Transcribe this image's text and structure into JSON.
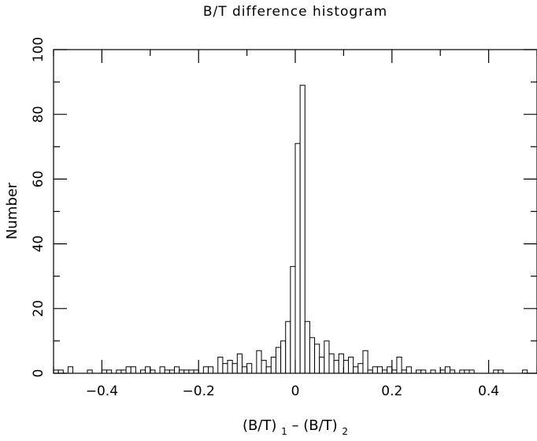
{
  "chart_data": {
    "type": "bar",
    "title": "B/T difference histogram",
    "ylabel": "Number",
    "xlabel": {
      "parts": [
        "(B/T)",
        "1",
        " – (B/T)",
        "2"
      ]
    },
    "xlim": [
      -0.5,
      0.5
    ],
    "ylim": [
      0,
      100
    ],
    "x_ticks": [
      -0.4,
      -0.2,
      0,
      0.2,
      0.4
    ],
    "x_tick_labels": [
      "−0.4",
      "−0.2",
      "0",
      "0.2",
      "0.4"
    ],
    "y_ticks": [
      0,
      20,
      40,
      60,
      80,
      100
    ],
    "y_tick_labels": [
      "0",
      "20",
      "40",
      "60",
      "80",
      "100"
    ],
    "bin_width": 0.01,
    "bin_start": -0.5,
    "values": [
      1,
      1,
      0,
      2,
      0,
      0,
      0,
      1,
      0,
      0,
      1,
      1,
      0,
      1,
      1,
      2,
      2,
      0,
      1,
      2,
      1,
      0,
      2,
      1,
      1,
      2,
      1,
      1,
      1,
      1,
      0,
      2,
      2,
      0,
      5,
      3,
      4,
      3,
      6,
      2,
      3,
      0,
      7,
      4,
      2,
      5,
      8,
      10,
      16,
      33,
      71,
      89,
      16,
      11,
      9,
      5,
      10,
      6,
      4,
      6,
      4,
      5,
      2,
      3,
      7,
      1,
      2,
      2,
      1,
      2,
      1,
      5,
      1,
      2,
      0,
      1,
      1,
      0,
      1,
      0,
      1,
      2,
      1,
      0,
      1,
      1,
      1,
      0,
      0,
      0,
      0,
      1,
      1,
      0,
      0,
      0,
      0,
      1,
      0,
      0
    ],
    "grid": false,
    "bar_fill": "#ffffff",
    "line_color": "#000000"
  }
}
